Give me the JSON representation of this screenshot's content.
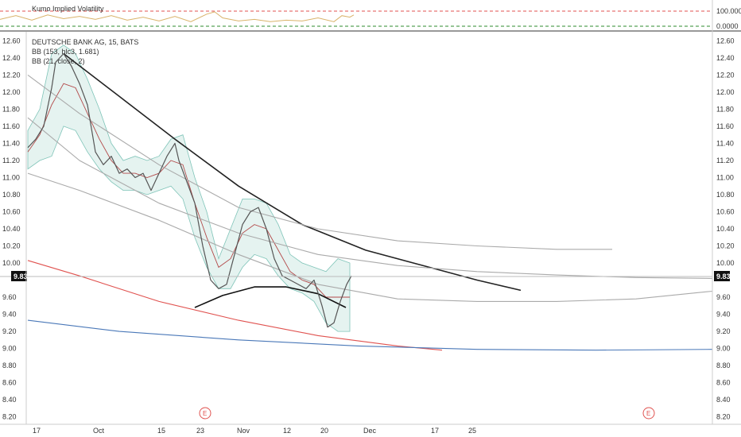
{
  "chart_data": [
    {
      "type": "line",
      "title": "Kumo Implied Volatility",
      "y_ticks": [
        "100.0000",
        "0.0000"
      ],
      "ylim": [
        0,
        100
      ],
      "reference_lines": [
        {
          "value": 100,
          "color": "#e0524f",
          "style": "dashed"
        },
        {
          "value": 0,
          "color": "#2e8b2e",
          "style": "dashed"
        }
      ],
      "series": [
        {
          "color": "#d9b36a",
          "x": [
            0,
            20,
            40,
            60,
            80,
            100,
            120,
            140,
            160,
            180,
            200,
            220,
            240,
            260,
            270,
            280,
            300,
            320,
            340,
            360,
            380,
            400,
            420,
            430,
            440,
            445
          ],
          "values": [
            45,
            70,
            40,
            75,
            50,
            65,
            45,
            70,
            40,
            60,
            35,
            65,
            30,
            80,
            95,
            55,
            35,
            45,
            30,
            40,
            35,
            55,
            30,
            70,
            60,
            75
          ]
        }
      ]
    },
    {
      "type": "line",
      "title": "DEUTSCHE BANK AG, 15, BATS",
      "legend": [
        "BB (153, hlc3, 1.681)",
        "BB (21, close, 2)"
      ],
      "x_ticks": [
        "17",
        "Oct",
        "15",
        "23",
        "Nov",
        "12",
        "20",
        "Dec",
        "17",
        "25"
      ],
      "y_ticks": [
        "12.60",
        "12.40",
        "12.20",
        "12.00",
        "11.80",
        "11.60",
        "11.40",
        "11.20",
        "11.00",
        "10.80",
        "10.60",
        "10.40",
        "10.20",
        "10.00",
        "9.60",
        "9.40",
        "9.20",
        "9.00",
        "8.80",
        "8.60",
        "8.40",
        "8.20"
      ],
      "ylim": [
        8.15,
        12.65
      ],
      "last_price": "9.83",
      "earnings_markers": [
        "E",
        "E"
      ],
      "price_series": {
        "color": "#555555",
        "x": [
          35,
          45,
          55,
          65,
          70,
          80,
          90,
          100,
          110,
          120,
          130,
          140,
          150,
          160,
          170,
          180,
          190,
          200,
          210,
          220,
          225,
          235,
          245,
          255,
          265,
          275,
          285,
          295,
          305,
          315,
          325,
          335,
          345,
          355,
          365,
          375,
          385,
          395,
          405,
          412,
          420,
          428,
          436,
          442
        ],
        "values": [
          11.35,
          11.45,
          11.6,
          12.05,
          12.35,
          12.45,
          12.3,
          12.1,
          11.85,
          11.3,
          11.15,
          11.25,
          11.05,
          11.1,
          11.0,
          11.05,
          10.85,
          11.05,
          11.25,
          11.4,
          11.2,
          10.95,
          10.7,
          10.2,
          9.8,
          9.7,
          9.75,
          10.1,
          10.45,
          10.6,
          10.65,
          10.4,
          10.05,
          9.85,
          9.8,
          9.75,
          9.7,
          9.8,
          9.5,
          9.25,
          9.3,
          9.55,
          9.75,
          9.85
        ]
      },
      "bb21": {
        "fill": "#cfe9e4",
        "x": [
          35,
          50,
          65,
          80,
          95,
          110,
          125,
          140,
          155,
          170,
          185,
          200,
          215,
          230,
          245,
          260,
          275,
          290,
          305,
          320,
          335,
          350,
          365,
          380,
          395,
          410,
          425,
          440
        ],
        "upper": [
          11.55,
          11.8,
          12.45,
          12.55,
          12.45,
          12.15,
          11.8,
          11.4,
          11.2,
          11.25,
          11.2,
          11.25,
          11.45,
          11.5,
          11.0,
          10.6,
          10.05,
          10.4,
          10.75,
          10.75,
          10.7,
          10.45,
          10.1,
          10.0,
          9.95,
          9.9,
          10.05,
          10.0
        ],
        "middle": [
          11.3,
          11.5,
          11.85,
          12.1,
          12.05,
          11.75,
          11.45,
          11.2,
          11.05,
          11.05,
          11.0,
          11.05,
          11.2,
          11.15,
          10.7,
          10.3,
          9.95,
          10.05,
          10.35,
          10.45,
          10.4,
          10.15,
          9.9,
          9.8,
          9.75,
          9.6,
          9.6,
          9.6
        ],
        "lower": [
          11.1,
          11.2,
          11.25,
          11.6,
          11.55,
          11.3,
          11.1,
          10.95,
          10.85,
          10.85,
          10.8,
          10.85,
          10.9,
          10.75,
          10.3,
          9.95,
          9.7,
          9.7,
          9.95,
          10.1,
          10.05,
          9.85,
          9.7,
          9.65,
          9.55,
          9.3,
          9.2,
          9.2
        ]
      },
      "trend_curves": [
        {
          "color": "#222222",
          "x": [
            80,
            150,
            220,
            300,
            380,
            460,
            540,
            600,
            655
          ],
          "values": [
            12.45,
            11.95,
            11.45,
            10.9,
            10.45,
            10.15,
            9.95,
            9.8,
            9.68
          ]
        },
        {
          "color": "#111111",
          "x": [
            245,
            280,
            320,
            360,
            400,
            435
          ],
          "values": [
            9.48,
            9.62,
            9.72,
            9.72,
            9.64,
            9.48
          ]
        },
        {
          "color": "#aaaaaa",
          "x": [
            35,
            100,
            200,
            300,
            400,
            500,
            600,
            700,
            770
          ],
          "values": [
            12.2,
            11.75,
            11.15,
            10.65,
            10.4,
            10.26,
            10.2,
            10.16,
            10.16
          ]
        },
        {
          "color": "#aaaaaa",
          "x": [
            35,
            100,
            200,
            300,
            400,
            500,
            600,
            700,
            800,
            896
          ],
          "values": [
            11.7,
            11.2,
            10.7,
            10.35,
            10.1,
            9.97,
            9.9,
            9.86,
            9.83,
            9.82
          ]
        },
        {
          "color": "#aaaaaa",
          "x": [
            35,
            100,
            200,
            300,
            400,
            500,
            600,
            700,
            800,
            896
          ],
          "values": [
            11.05,
            10.85,
            10.5,
            10.1,
            9.75,
            9.58,
            9.55,
            9.55,
            9.58,
            9.67
          ]
        },
        {
          "color": "#e0524f",
          "x": [
            35,
            100,
            200,
            300,
            400,
            500,
            556
          ],
          "values": [
            10.03,
            9.85,
            9.55,
            9.33,
            9.15,
            9.03,
            8.98
          ]
        },
        {
          "color": "#4a78b8",
          "x": [
            35,
            150,
            300,
            450,
            600,
            750,
            896
          ],
          "values": [
            9.33,
            9.2,
            9.1,
            9.03,
            8.99,
            8.98,
            8.99
          ]
        }
      ]
    }
  ]
}
